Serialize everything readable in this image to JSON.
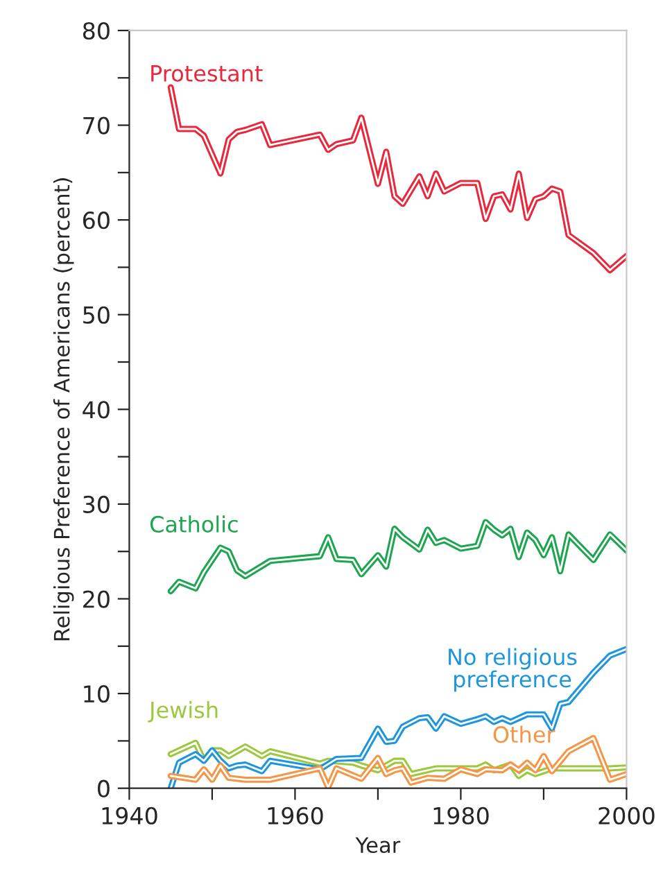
{
  "chart_data": {
    "type": "line",
    "xlabel": "Year",
    "ylabel": "Religious Preference of Americans (percent)",
    "xlim": [
      1940,
      2000
    ],
    "ylim": [
      0,
      80
    ],
    "xticks": [
      1940,
      {
        "value": 1950,
        "label": null
      },
      1960,
      {
        "value": 1970,
        "label": null
      },
      1980,
      {
        "value": 1990,
        "label": null
      },
      2000
    ],
    "yticks": [
      0,
      {
        "value": 5,
        "label": null
      },
      10,
      {
        "value": 15,
        "label": null
      },
      20,
      {
        "value": 25,
        "label": null
      },
      30,
      {
        "value": 35,
        "label": null
      },
      40,
      {
        "value": 45,
        "label": null
      },
      50,
      {
        "value": 55,
        "label": null
      },
      60,
      {
        "value": 65,
        "label": null
      },
      70,
      {
        "value": 75,
        "label": null
      },
      80
    ],
    "grid": false,
    "legend": false,
    "marker": "none",
    "line_style": "solid",
    "series": [
      {
        "name": "Protestant",
        "color": "#e8283c",
        "x": [
          1945,
          1946,
          1948,
          1949,
          1951,
          1952,
          1953,
          1954,
          1956,
          1957,
          1963,
          1964,
          1965,
          1967,
          1968,
          1970,
          1971,
          1972,
          1973,
          1975,
          1976,
          1977,
          1978,
          1980,
          1982,
          1983,
          1984,
          1985,
          1986,
          1987,
          1988,
          1989,
          1990,
          1991,
          1992,
          1993,
          1996,
          1998,
          2000
        ],
        "values": [
          74.0,
          69.6,
          69.6,
          68.9,
          64.9,
          68.5,
          69.3,
          69.5,
          70.1,
          67.9,
          69.0,
          67.4,
          68.0,
          68.4,
          70.8,
          63.8,
          67.2,
          62.5,
          61.7,
          64.6,
          62.5,
          64.9,
          63.0,
          63.9,
          63.9,
          60.1,
          62.5,
          62.7,
          61.1,
          64.9,
          60.2,
          62.2,
          62.5,
          63.3,
          63.0,
          58.4,
          56.5,
          54.7,
          56.2
        ]
      },
      {
        "name": "Catholic",
        "color": "#1ea550",
        "x": [
          1945,
          1946,
          1948,
          1949,
          1951,
          1952,
          1953,
          1954,
          1957,
          1963,
          1964,
          1965,
          1967,
          1968,
          1970,
          1971,
          1972,
          1973,
          1975,
          1976,
          1977,
          1978,
          1980,
          1982,
          1983,
          1984,
          1985,
          1986,
          1987,
          1988,
          1989,
          1990,
          1991,
          1992,
          1993,
          1996,
          1998,
          2000
        ],
        "values": [
          20.8,
          21.8,
          21.1,
          22.8,
          25.4,
          25.0,
          23.0,
          22.4,
          24.0,
          24.5,
          26.5,
          24.2,
          24.1,
          22.6,
          24.6,
          23.4,
          27.4,
          26.5,
          25.2,
          27.3,
          25.9,
          26.2,
          25.3,
          25.6,
          28.1,
          27.3,
          26.7,
          27.4,
          24.4,
          27.0,
          26.2,
          24.6,
          26.5,
          22.9,
          26.8,
          24.1,
          26.8,
          25.1
        ]
      },
      {
        "name": "Jewish",
        "color": "#9bc83c",
        "x": [
          1945,
          1948,
          1949,
          1950,
          1951,
          1952,
          1954,
          1956,
          1957,
          1963,
          1964,
          1967,
          1968,
          1970,
          1972,
          1973,
          1974,
          1977,
          1982,
          1983,
          1984,
          1986,
          1987,
          1988,
          1989,
          1991,
          1993,
          1998,
          2000
        ],
        "values": [
          3.6,
          4.8,
          2.9,
          4.0,
          4.0,
          3.4,
          4.4,
          3.4,
          3.9,
          2.6,
          2.9,
          2.7,
          2.4,
          1.9,
          2.9,
          2.9,
          1.5,
          2.1,
          2.1,
          2.5,
          1.9,
          2.5,
          1.3,
          1.9,
          1.5,
          2.1,
          2.1,
          2.1,
          2.2
        ]
      },
      {
        "name": "No religious\npreference",
        "color": "#1e96dc",
        "x": [
          1945,
          1946,
          1948,
          1949,
          1950,
          1951,
          1952,
          1953,
          1954,
          1956,
          1957,
          1963,
          1965,
          1968,
          1970,
          1971,
          1972,
          1973,
          1975,
          1976,
          1977,
          1978,
          1980,
          1982,
          1983,
          1984,
          1985,
          1986,
          1987,
          1988,
          1990,
          1991,
          1992,
          1993,
          1996,
          1998,
          2000
        ],
        "values": [
          0.0,
          2.7,
          3.6,
          2.9,
          4.0,
          2.9,
          2.1,
          2.4,
          2.5,
          1.8,
          2.9,
          2.0,
          3.1,
          3.2,
          6.3,
          4.9,
          5.0,
          6.5,
          7.4,
          7.5,
          6.3,
          7.6,
          6.8,
          7.3,
          7.6,
          7.0,
          7.4,
          7.0,
          7.4,
          7.8,
          7.8,
          6.3,
          8.9,
          9.1,
          12.2,
          14.0,
          14.7
        ]
      },
      {
        "name": "Other",
        "color": "#f59646",
        "x": [
          1945,
          1948,
          1949,
          1950,
          1951,
          1952,
          1954,
          1957,
          1963,
          1964,
          1965,
          1968,
          1970,
          1971,
          1972,
          1973,
          1974,
          1976,
          1978,
          1980,
          1982,
          1983,
          1985,
          1986,
          1987,
          1988,
          1989,
          1990,
          1991,
          1993,
          1996,
          1998,
          2000
        ],
        "values": [
          1.3,
          0.9,
          2.0,
          0.9,
          2.4,
          1.1,
          0.9,
          0.9,
          2.1,
          0.1,
          2.1,
          1.0,
          3.2,
          1.5,
          1.9,
          2.1,
          0.6,
          1.1,
          1.0,
          2.0,
          1.5,
          2.0,
          1.9,
          2.5,
          1.9,
          2.7,
          1.9,
          3.4,
          1.8,
          3.9,
          5.3,
          0.9,
          1.5
        ]
      }
    ]
  }
}
